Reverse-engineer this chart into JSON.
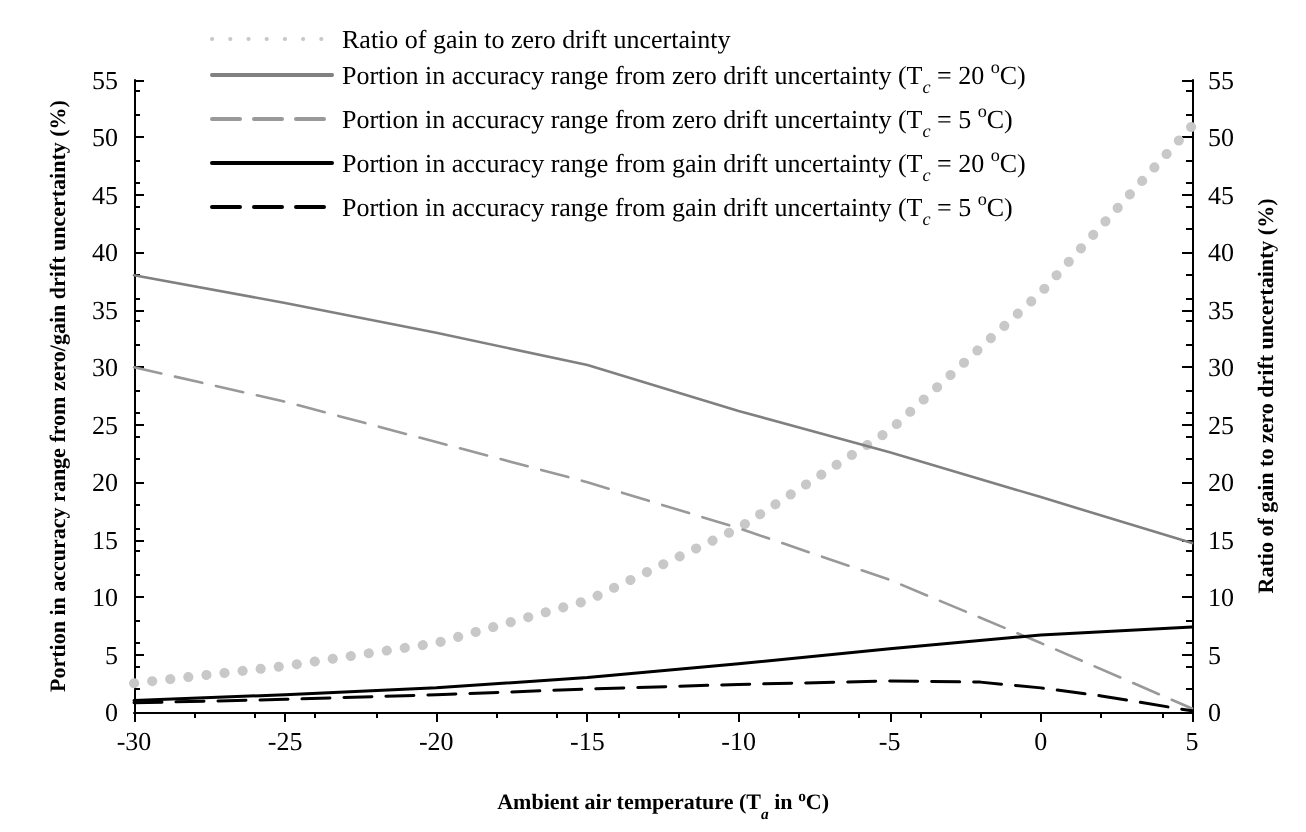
{
  "chart_data": {
    "type": "line",
    "xlabel": "Ambient air temperature (T$_{a}$ in $^{o}$C)",
    "ylabel": "Portion in accuracy range from zero/gain drift uncertainty (%)",
    "y2label": "Ratio of gain to zero drift uncertainty (%)",
    "x": [
      -30,
      -25,
      -20,
      -15,
      -10,
      -5,
      0,
      5
    ],
    "series": [
      {
        "name": "Ratio of gain to zero drift uncertainty",
        "color": "#c8c8c8",
        "line_style": "dotted",
        "axis": "y2",
        "values": [
          2.5,
          4,
          6,
          9.7,
          16,
          24.5,
          36.5,
          51
        ]
      },
      {
        "name": "Portion in accuracy range from zero drift uncertainty (T$_{c}$ = 20 $^{o}$C)",
        "color": "#808080",
        "line_style": "solid",
        "values": [
          38,
          35.6,
          33,
          30.2,
          26.2,
          22.6,
          18.7,
          14.7
        ]
      },
      {
        "name": "Portion in accuracy range from zero drift uncertainty (T$_{c}$ = 5 $^{o}$C)",
        "color": "#999999",
        "line_style": "dashed",
        "values": [
          30,
          27,
          23.5,
          20,
          16,
          11.5,
          6,
          0.3
        ]
      },
      {
        "name": "Portion in accuracy range from gain drift uncertainty (T$_{c}$ = 20 $^{o}$C)",
        "color": "#000000",
        "line_style": "solid",
        "values": [
          1,
          1.5,
          2.1,
          3,
          4.2,
          5.5,
          6.7,
          7.4
        ]
      },
      {
        "name": "Portion in accuracy range from gain drift uncertainty (T$_{c}$ = 5 $^{o}$C)",
        "color": "#000000",
        "line_style": "dashed",
        "x": [
          -30,
          -25,
          -20,
          -15,
          -10,
          -5,
          -2,
          0,
          2,
          5
        ],
        "values": [
          0.8,
          1.1,
          1.5,
          2,
          2.4,
          2.7,
          2.6,
          2.1,
          1.4,
          0.1
        ]
      }
    ],
    "xlim": [
      -30,
      5
    ],
    "xticks": [
      -30,
      -25,
      -20,
      -15,
      -10,
      -5,
      0,
      5
    ],
    "ylim": [
      0,
      55
    ],
    "yticks": [
      0,
      5,
      10,
      15,
      20,
      25,
      30,
      35,
      40,
      45,
      50,
      55
    ],
    "y2lim": [
      0,
      55
    ],
    "y2ticks": [
      0,
      5,
      10,
      15,
      20,
      25,
      30,
      35,
      40,
      45,
      50,
      55
    ],
    "grid": false,
    "legend": "top left",
    "marker": "none"
  }
}
